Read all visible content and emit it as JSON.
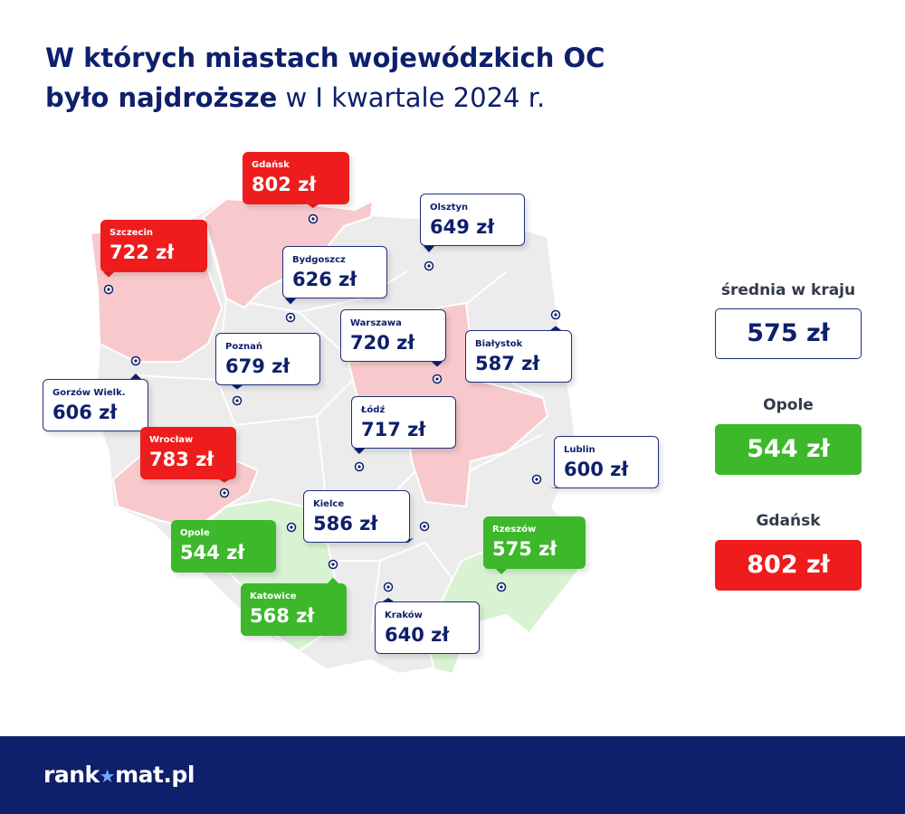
{
  "title": {
    "line1": "W których miastach wojewódzkich OC",
    "line2_bold": "było najdroższe",
    "line2_rest": " w I kwartale 2024 r."
  },
  "colors": {
    "navy": "#0e1f6b",
    "red": "#ee1c1c",
    "green": "#3cb82a",
    "map_red": "#f8c9cc",
    "map_green": "#d8f2d2",
    "map_gray": "#ececec"
  },
  "chart_data": {
    "type": "map",
    "unit": "zł",
    "cities": [
      {
        "name": "Gdańsk",
        "value": 802,
        "label": "802 zł",
        "category": "red"
      },
      {
        "name": "Szczecin",
        "value": 722,
        "label": "722 zł",
        "category": "red"
      },
      {
        "name": "Olsztyn",
        "value": 649,
        "label": "649 zł",
        "category": "neutral"
      },
      {
        "name": "Bydgoszcz",
        "value": 626,
        "label": "626 zł",
        "category": "neutral"
      },
      {
        "name": "Warszawa",
        "value": 720,
        "label": "720 zł",
        "category": "neutral"
      },
      {
        "name": "Białystok",
        "value": 587,
        "label": "587 zł",
        "category": "neutral"
      },
      {
        "name": "Poznań",
        "value": 679,
        "label": "679 zł",
        "category": "neutral"
      },
      {
        "name": "Gorzów Wielk.",
        "value": 606,
        "label": "606 zł",
        "category": "neutral"
      },
      {
        "name": "Łódź",
        "value": 717,
        "label": "717 zł",
        "category": "neutral"
      },
      {
        "name": "Wrocław",
        "value": 783,
        "label": "783 zł",
        "category": "red"
      },
      {
        "name": "Lublin",
        "value": 600,
        "label": "600 zł",
        "category": "neutral"
      },
      {
        "name": "Kielce",
        "value": 586,
        "label": "586 zł",
        "category": "neutral"
      },
      {
        "name": "Opole",
        "value": 544,
        "label": "544 zł",
        "category": "green"
      },
      {
        "name": "Rzeszów",
        "value": 575,
        "label": "575 zł",
        "category": "green"
      },
      {
        "name": "Katowice",
        "value": 568,
        "label": "568 zł",
        "category": "green"
      },
      {
        "name": "Kraków",
        "value": 640,
        "label": "640 zł",
        "category": "neutral"
      }
    ],
    "legend": [
      {
        "label": "średnia w kraju",
        "value": "575 zł",
        "style": "white"
      },
      {
        "label": "Opole",
        "value": "544 zł",
        "style": "green"
      },
      {
        "label": "Gdańsk",
        "value": "802 zł",
        "style": "red"
      }
    ]
  },
  "footer": {
    "brand_left": "rank",
    "brand_star": "★",
    "brand_right": "mat.pl"
  }
}
